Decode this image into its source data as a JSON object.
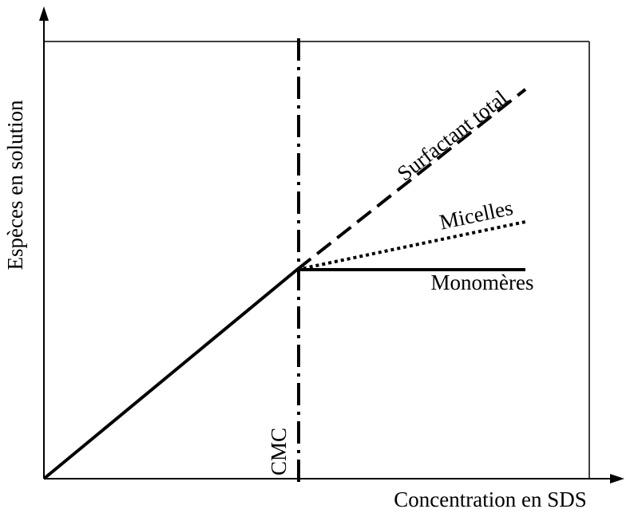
{
  "axes": {
    "x_label": "Concentration en SDS",
    "y_label": "Espèces en solution"
  },
  "curves": {
    "total": "Surfactant total",
    "micelles": "Micelles",
    "monomers": "Monomères"
  },
  "marker": {
    "label": "CMC"
  }
}
